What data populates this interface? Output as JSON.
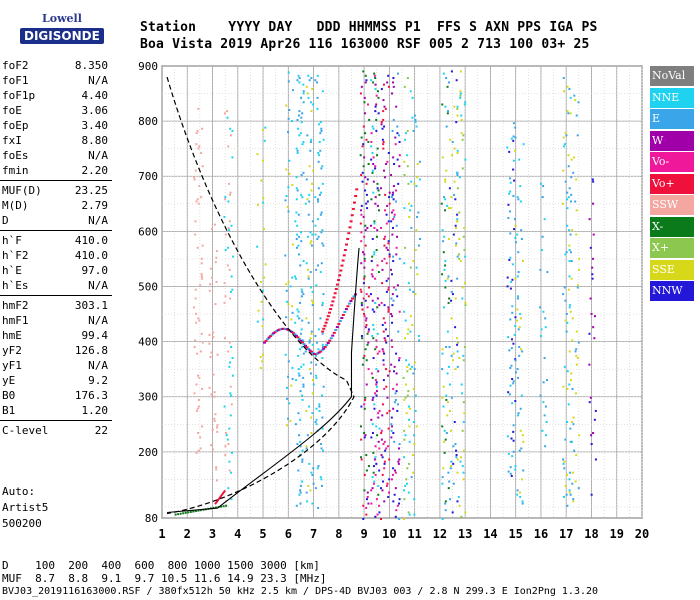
{
  "logo": {
    "brand": "Lowell",
    "product": "DIGISONDE"
  },
  "header": {
    "line1": "Station    YYYY DAY   DDD HHMMSS P1  FFS S AXN PPS IGA PS",
    "line2": "Boa Vista 2019 Apr26 116 163000 RSF 005 2 713 100 03+ 25"
  },
  "params": [
    [
      {
        "k": "foF2",
        "v": "8.350"
      },
      {
        "k": "foF1",
        "v": "N/A"
      },
      {
        "k": "foF1p",
        "v": "4.40"
      },
      {
        "k": "foE",
        "v": "3.06"
      },
      {
        "k": "foEp",
        "v": "3.40"
      },
      {
        "k": "fxI",
        "v": "8.80"
      },
      {
        "k": "foEs",
        "v": "N/A"
      },
      {
        "k": "fmin",
        "v": "2.20"
      }
    ],
    [
      {
        "k": "MUF(D)",
        "v": "23.25"
      },
      {
        "k": "M(D)",
        "v": "2.79"
      },
      {
        "k": "D",
        "v": "N/A"
      }
    ],
    [
      {
        "k": "h`F",
        "v": "410.0"
      },
      {
        "k": "h`F2",
        "v": "410.0"
      },
      {
        "k": "h`E",
        "v": "97.0"
      },
      {
        "k": "h`Es",
        "v": "N/A"
      }
    ],
    [
      {
        "k": "hmF2",
        "v": "303.1"
      },
      {
        "k": "hmF1",
        "v": "N/A"
      },
      {
        "k": "hmE",
        "v": "99.4"
      },
      {
        "k": "yF2",
        "v": "126.8"
      },
      {
        "k": "yF1",
        "v": "N/A"
      },
      {
        "k": "yE",
        "v": "9.2"
      },
      {
        "k": "B0",
        "v": "176.3"
      },
      {
        "k": "B1",
        "v": "1.20"
      }
    ],
    [
      {
        "k": "C-level",
        "v": "22"
      }
    ]
  ],
  "auto": {
    "line1": "Auto:",
    "line2": "Artist5",
    "line3": "500200"
  },
  "legend": [
    {
      "label": "NoVal",
      "color": "#7f7f7f"
    },
    {
      "label": "NNE",
      "color": "#1fd3f0"
    },
    {
      "label": "E",
      "color": "#3aa5e8"
    },
    {
      "label": "W",
      "color": "#a000a8"
    },
    {
      "label": "Vo-",
      "color": "#f0189a"
    },
    {
      "label": "Vo+",
      "color": "#f0103c"
    },
    {
      "label": "SSW",
      "color": "#f4a7a0"
    },
    {
      "label": "X-",
      "color": "#0b7a1a"
    },
    {
      "label": "X+",
      "color": "#8cc850"
    },
    {
      "label": "SSE",
      "color": "#d7d81a"
    },
    {
      "label": "NNW",
      "color": "#2418d8"
    }
  ],
  "chart_data": {
    "type": "scatter",
    "x_ticks": [
      "1",
      "2",
      "3",
      "4",
      "5",
      "6",
      "7",
      "8",
      "9",
      "10",
      "11",
      "12",
      "13",
      "14",
      "15",
      "16",
      "17",
      "18",
      "19",
      "20"
    ],
    "y_ticks": [
      "80",
      "200",
      "300",
      "400",
      "500",
      "600",
      "700",
      "800",
      "900"
    ],
    "xlim": [
      1,
      20
    ],
    "ylim": [
      80,
      900
    ],
    "grid": true,
    "legend_position": "right"
  },
  "bottom": {
    "dline": "D    100  200  400  600  800 1000 1500 3000 [km]",
    "mufline": "MUF  8.7  8.8  9.1  9.7 10.5 11.6 14.9 23.3 [MHz]",
    "footer": "BVJ03_2019116163000.RSF / 380fx512h 50 kHz 2.5 km / DPS-4D BVJ03 003 / 2.8 N 299.3 E Ion2Png 1.3.20"
  }
}
